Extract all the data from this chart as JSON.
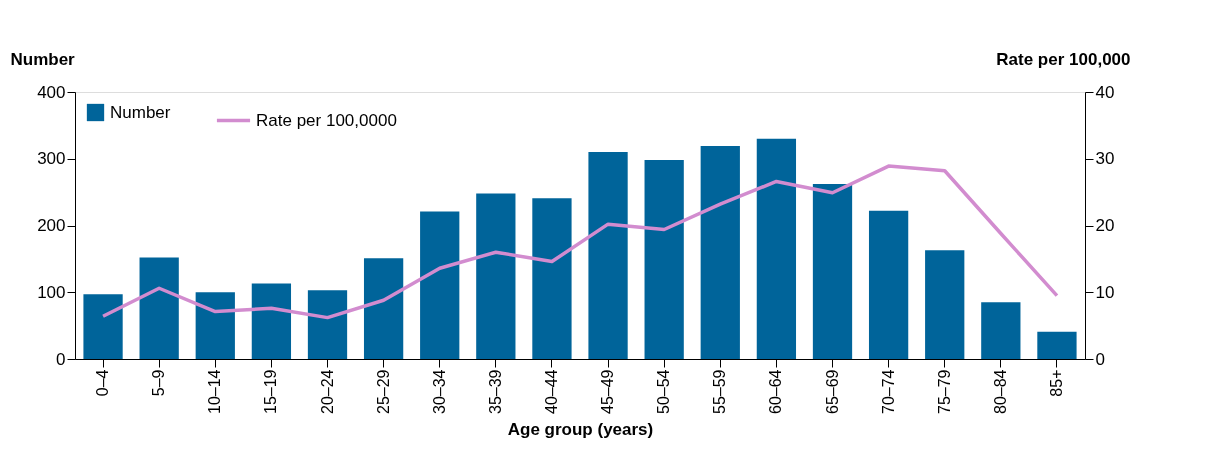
{
  "chart_data": {
    "type": "bar",
    "xlabel": "Age group (years)",
    "ylabel": "Number",
    "y2label": "Rate per 100,000",
    "categories": [
      "0–4",
      "5–9",
      "10–14",
      "15–19",
      "20–24",
      "25–29",
      "30–34",
      "35–39",
      "40–44",
      "45–49",
      "50–54",
      "55–59",
      "60–64",
      "65–69",
      "70–74",
      "75–79",
      "80–84",
      "85+"
    ],
    "series": [
      {
        "name": "Number",
        "type": "bar",
        "color": "#00649a",
        "values": [
          97,
          152,
          100,
          113,
          103,
          151,
          221,
          248,
          241,
          310,
          298,
          319,
          330,
          262,
          222,
          163,
          85,
          41
        ]
      },
      {
        "name": "Rate per 100,0000",
        "type": "line",
        "axis": "y2",
        "color": "#d28ccf",
        "values": [
          6.4,
          10.6,
          7.1,
          7.6,
          6.2,
          8.8,
          13.6,
          16.0,
          14.6,
          20.2,
          19.4,
          23.2,
          26.6,
          24.9,
          28.9,
          28.2,
          18.8,
          9.5
        ]
      }
    ],
    "ylim": [
      0,
      400
    ],
    "yticks": [
      0,
      100,
      200,
      300,
      400
    ],
    "y2lim": [
      0,
      40
    ],
    "y2ticks": [
      0,
      10,
      20,
      30,
      40
    ],
    "grid": false,
    "legend": "top left",
    "marker": "none",
    "line_style": "solid"
  }
}
